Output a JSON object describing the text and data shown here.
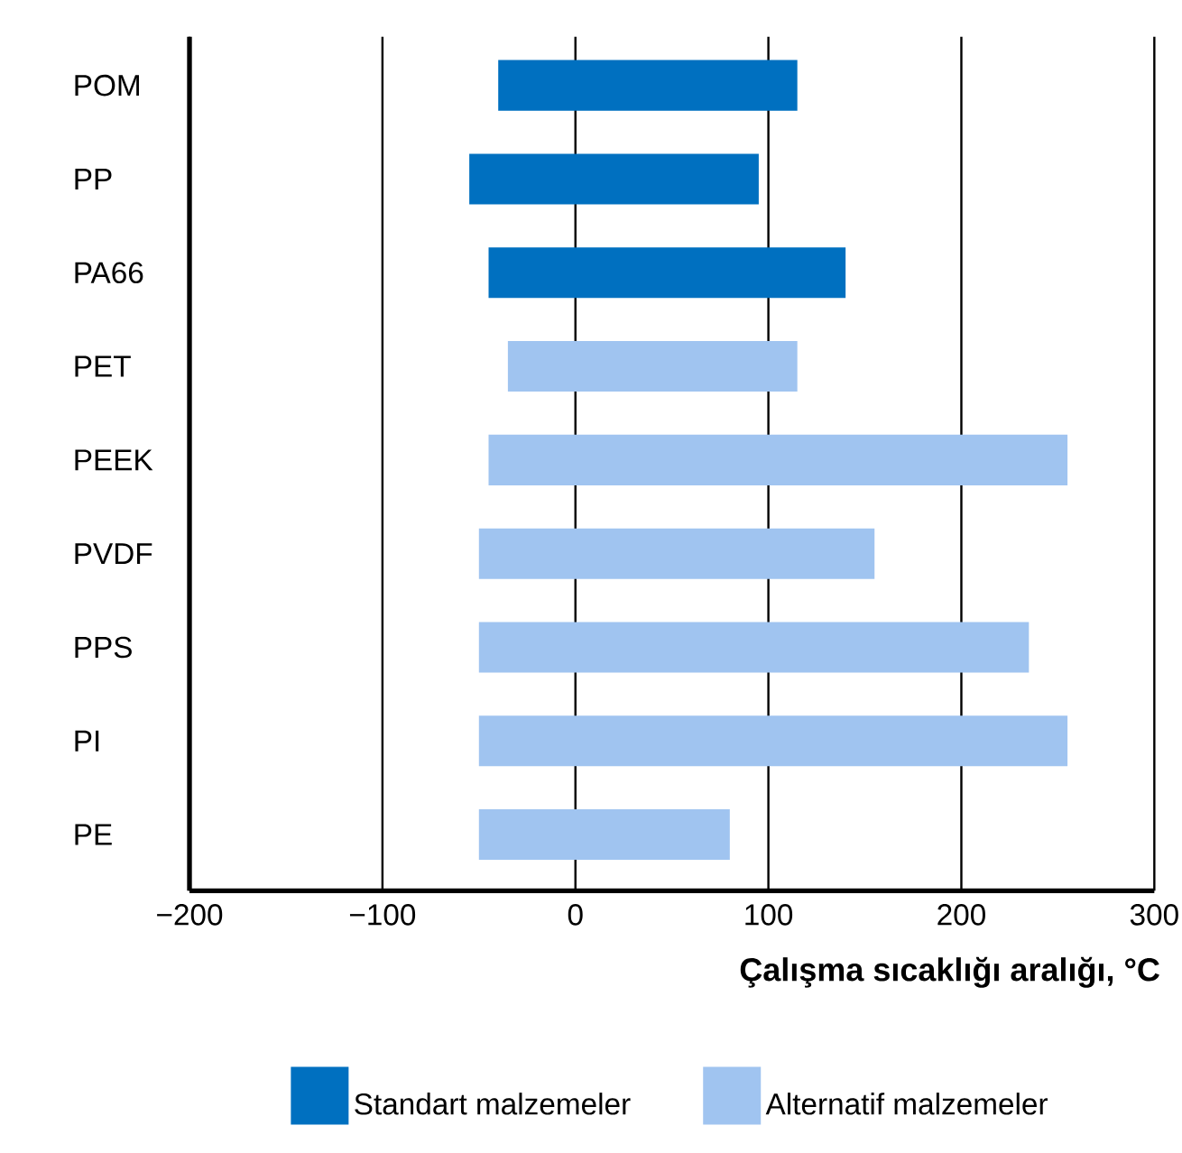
{
  "chart_data": {
    "type": "bar",
    "orientation": "horizontal",
    "categories": [
      "POM",
      "PP",
      "PA66",
      "PET",
      "PEEK",
      "PVDF",
      "PPS",
      "PI",
      "PE"
    ],
    "series": [
      {
        "name": "Standart malzemeler",
        "color": "#0070c0",
        "base": [
          -40,
          -55,
          -45,
          null,
          null,
          null,
          null,
          null,
          null
        ],
        "values": [
          155,
          150,
          185,
          null,
          null,
          null,
          null,
          null,
          null
        ]
      },
      {
        "name": "Alternatif malzemeler",
        "color": "#a0c4f0",
        "base": [
          null,
          null,
          null,
          -35,
          -45,
          -50,
          -50,
          -50,
          -50
        ],
        "values": [
          null,
          null,
          null,
          150,
          300,
          205,
          285,
          305,
          130
        ]
      }
    ],
    "xlim": [
      -200,
      300
    ],
    "xticks": [
      {
        "value": -200,
        "label": "−200"
      },
      {
        "value": -100,
        "label": "−100"
      },
      {
        "value": 0,
        "label": "0"
      },
      {
        "value": 100,
        "label": "100"
      },
      {
        "value": 200,
        "label": "200"
      },
      {
        "value": 300,
        "label": "300"
      }
    ],
    "xlabel": "Çalışma sıcaklığı aralığı, °C",
    "grid": "x",
    "legend": "bottom"
  }
}
